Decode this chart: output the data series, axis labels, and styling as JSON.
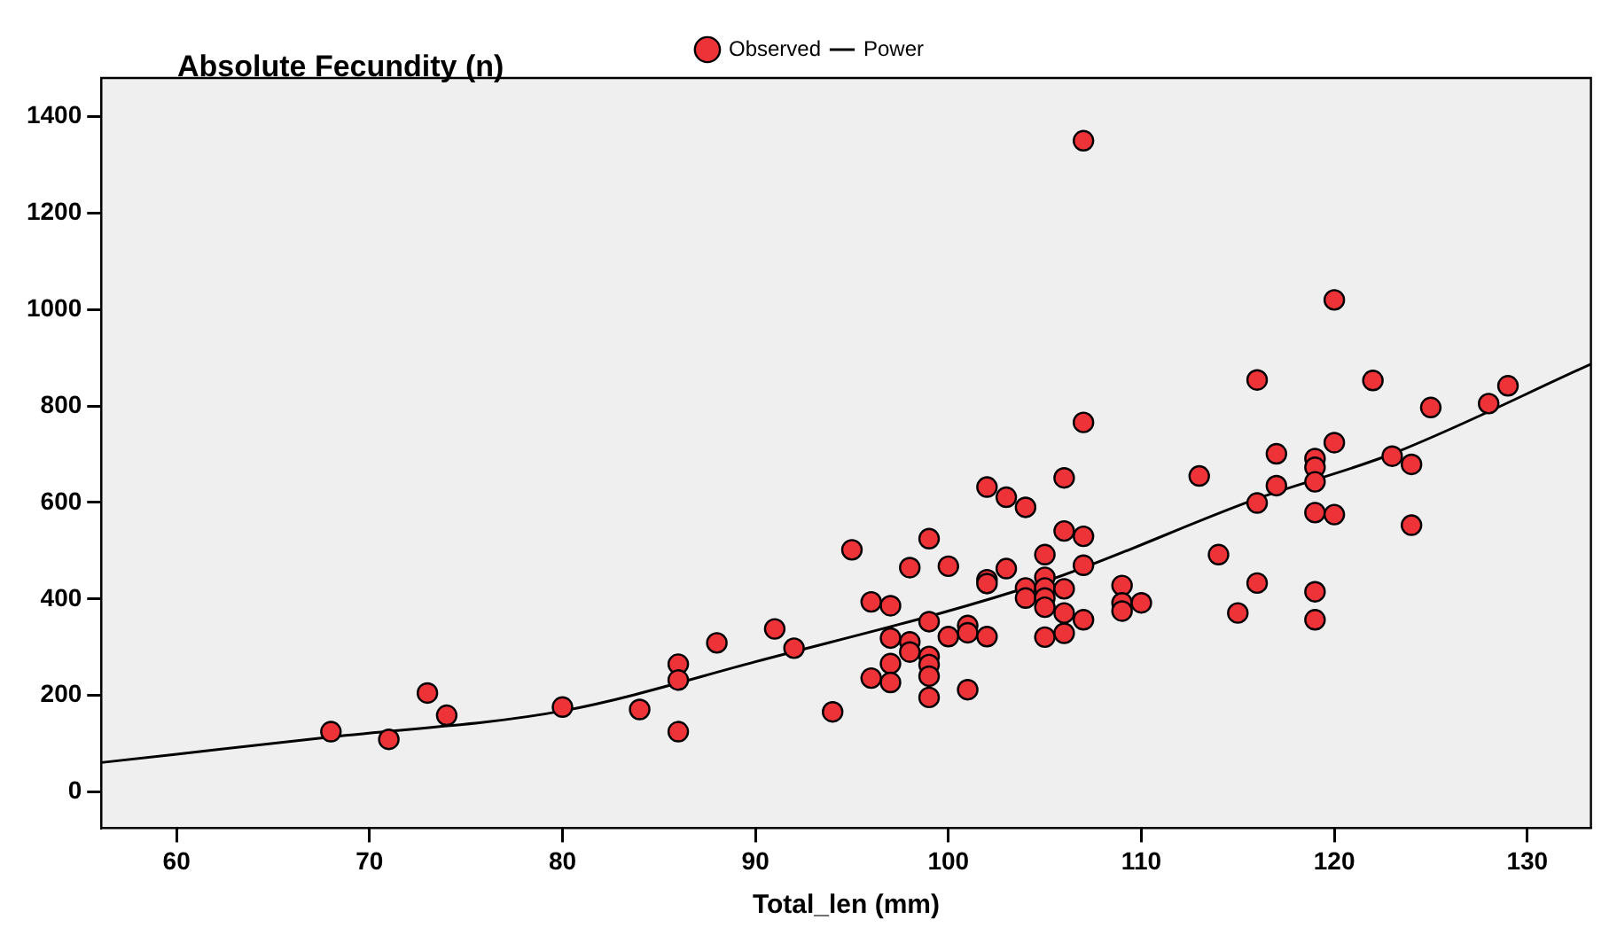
{
  "chart_data": {
    "type": "scatter",
    "ylabel": "Absolute Fecundity (n)",
    "xlabel": "Total_len (mm)",
    "xlim": [
      56.1,
      133.3
    ],
    "xticks": [
      60,
      70,
      80,
      90,
      100,
      110,
      120,
      130
    ],
    "ylim": [
      -75,
      1480
    ],
    "yticks": [
      0,
      200,
      400,
      600,
      800,
      1000,
      1200,
      1400
    ],
    "grid": false,
    "legend": "top",
    "series": [
      {
        "name": "Observed",
        "marker": "circle",
        "color": "#ee3338",
        "x": [
          68,
          71,
          73,
          74,
          80,
          84,
          86,
          86,
          86,
          88,
          91,
          92,
          94,
          107,
          120,
          116,
          122,
          125,
          128,
          129,
          107,
          120,
          117,
          119,
          119,
          119,
          117,
          123,
          124,
          113,
          106,
          116,
          119,
          120,
          124,
          102,
          103,
          104,
          106,
          107,
          99,
          95,
          105,
          114,
          107,
          98,
          100,
          103,
          102,
          102,
          104,
          105,
          105,
          106,
          109,
          116,
          119,
          104,
          105,
          105,
          109,
          109,
          110,
          106,
          107,
          115,
          119,
          96,
          97,
          99,
          101,
          101,
          100,
          102,
          97,
          98,
          98,
          99,
          99,
          99,
          97,
          96,
          97,
          99,
          101,
          105,
          106
        ],
        "values": [
          125,
          109,
          205,
          159,
          176,
          171,
          265,
          232,
          125,
          309,
          338,
          298,
          166,
          1350,
          1020,
          854,
          853,
          797,
          805,
          842,
          766,
          724,
          701,
          691,
          673,
          643,
          635,
          696,
          679,
          655,
          651,
          599,
          579,
          575,
          553,
          632,
          611,
          590,
          541,
          530,
          525,
          502,
          492,
          492,
          470,
          465,
          468,
          463,
          440,
          432,
          423,
          445,
          423,
          421,
          428,
          433,
          415,
          402,
          402,
          383,
          392,
          375,
          392,
          371,
          357,
          371,
          357,
          394,
          386,
          353,
          345,
          330,
          322,
          322,
          319,
          311,
          290,
          281,
          264,
          240,
          266,
          236,
          227,
          196,
          212,
          321,
          329
        ]
      },
      {
        "name": "Power",
        "type": "line",
        "marker": "none",
        "color": "#000000",
        "x": [
          56.1,
          68,
          80,
          90,
          105,
          116,
          123,
          133.3
        ],
        "values": [
          61,
          114,
          168,
          270,
          436,
          608,
          701,
          887
        ]
      }
    ]
  }
}
